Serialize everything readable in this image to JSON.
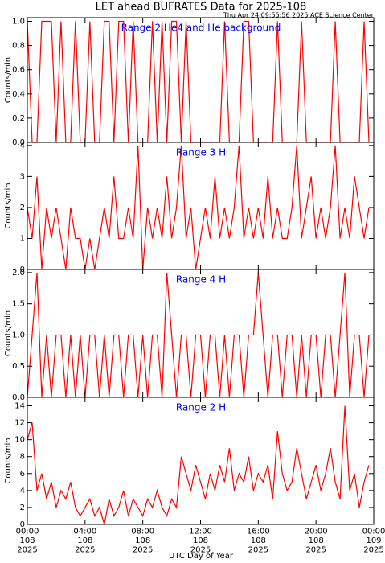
{
  "title": "LET ahead BUFRATES Data for 2025-108",
  "subtitle": "Thu Apr 24 09:55:56 2025 ACE Science Center",
  "chart_data": [
    {
      "type": "line",
      "title": "Range 2 He4 and He background",
      "y_label": "Counts/min",
      "color": "#ff0000",
      "x": [
        0,
        20,
        40,
        60,
        80,
        100,
        120,
        140,
        160,
        180,
        200,
        220,
        240,
        260,
        280,
        300,
        320,
        340,
        360,
        380,
        400,
        420,
        440,
        460,
        480,
        500,
        520,
        540,
        560,
        580,
        600,
        620,
        640,
        660,
        680,
        700,
        720,
        740,
        760,
        780,
        800,
        820,
        840,
        860,
        880,
        900,
        920,
        940,
        960,
        980,
        1000,
        1020,
        1040,
        1060,
        1080,
        1100,
        1120,
        1140,
        1160,
        1180,
        1200,
        1220,
        1240,
        1260,
        1280,
        1300,
        1320,
        1340,
        1360,
        1380,
        1400,
        1420
      ],
      "values": [
        1,
        0,
        0,
        1,
        1,
        1,
        0,
        1,
        0,
        0,
        1,
        0,
        0,
        1,
        0,
        0,
        1,
        1,
        0,
        1,
        1,
        0,
        1,
        0,
        0,
        0,
        1,
        0,
        1,
        0,
        1,
        1,
        0,
        1,
        0,
        0,
        0,
        0,
        0,
        0,
        0,
        1,
        0,
        0,
        0,
        1,
        1,
        0,
        0,
        0,
        0,
        0,
        1,
        0,
        0,
        0,
        0,
        1,
        0,
        0,
        0,
        0,
        0,
        0,
        1,
        0,
        0,
        0,
        0,
        0,
        1,
        0
      ],
      "ylim": [
        0,
        1.03
      ],
      "yticks": [
        {
          "value": 0,
          "label": "0.0"
        },
        {
          "value": 0.2,
          "label": "0.2"
        },
        {
          "value": 0.4,
          "label": "0.4"
        },
        {
          "value": 0.6,
          "label": "0.6"
        },
        {
          "value": 0.8,
          "label": "0.8"
        },
        {
          "value": 1,
          "label": "1.0"
        }
      ]
    },
    {
      "type": "line",
      "title": "Range 3 H",
      "y_label": "Counts/min",
      "color": "#ff0000",
      "x": [
        0,
        20,
        40,
        60,
        80,
        100,
        120,
        140,
        160,
        180,
        200,
        220,
        240,
        260,
        280,
        300,
        320,
        340,
        360,
        380,
        400,
        420,
        440,
        460,
        480,
        500,
        520,
        540,
        560,
        580,
        600,
        620,
        640,
        660,
        680,
        700,
        720,
        740,
        760,
        780,
        800,
        820,
        840,
        860,
        880,
        900,
        920,
        940,
        960,
        980,
        1000,
        1020,
        1040,
        1060,
        1080,
        1100,
        1120,
        1140,
        1160,
        1180,
        1200,
        1220,
        1240,
        1260,
        1280,
        1300,
        1320,
        1340,
        1360,
        1380,
        1400,
        1420
      ],
      "values": [
        2,
        1,
        3,
        0,
        2,
        1,
        2,
        1,
        0,
        2,
        1,
        1,
        0,
        1,
        0,
        1,
        2,
        1,
        3,
        1,
        1,
        2,
        1,
        4,
        0,
        2,
        1,
        2,
        1,
        3,
        1,
        2,
        4,
        1,
        2,
        0,
        1,
        2,
        1,
        3,
        1,
        2,
        1,
        2,
        4,
        1,
        2,
        1,
        2,
        1,
        3,
        1,
        2,
        1,
        1,
        2,
        4,
        1,
        2,
        3,
        1,
        2,
        1,
        2,
        4,
        1,
        2,
        1,
        3,
        2,
        1,
        2
      ],
      "ylim": [
        0,
        4.1
      ],
      "yticks": [
        0,
        1,
        2,
        3,
        4
      ]
    },
    {
      "type": "line",
      "title": "Range 4 H",
      "y_label": "Counts/min",
      "color": "#ff0000",
      "x": [
        0,
        20,
        40,
        60,
        80,
        100,
        120,
        140,
        160,
        180,
        200,
        220,
        240,
        260,
        280,
        300,
        320,
        340,
        360,
        380,
        400,
        420,
        440,
        460,
        480,
        500,
        520,
        540,
        560,
        580,
        600,
        620,
        640,
        660,
        680,
        700,
        720,
        740,
        760,
        780,
        800,
        820,
        840,
        860,
        880,
        900,
        920,
        940,
        960,
        980,
        1000,
        1020,
        1040,
        1060,
        1080,
        1100,
        1120,
        1140,
        1160,
        1180,
        1200,
        1220,
        1240,
        1260,
        1280,
        1300,
        1320,
        1340,
        1360,
        1380,
        1400,
        1420
      ],
      "values": [
        0,
        1,
        2,
        0,
        1,
        0,
        1,
        1,
        0,
        1,
        0,
        1,
        0,
        1,
        1,
        0,
        1,
        0,
        1,
        1,
        0,
        1,
        1,
        0,
        1,
        0,
        1,
        1,
        0,
        2,
        1,
        0,
        1,
        1,
        0,
        1,
        1,
        0,
        1,
        1,
        0,
        1,
        0,
        1,
        1,
        0,
        1,
        1,
        2,
        1,
        0,
        1,
        1,
        0,
        1,
        1,
        0,
        1,
        0,
        1,
        1,
        0,
        1,
        1,
        0,
        1,
        2,
        0,
        1,
        1,
        0,
        1
      ],
      "ylim": [
        0,
        2.05
      ],
      "yticks": [
        {
          "value": 0,
          "label": "0.0"
        },
        {
          "value": 0.5,
          "label": "0.5"
        },
        {
          "value": 1,
          "label": "1.0"
        },
        {
          "value": 1.5,
          "label": "1.5"
        },
        {
          "value": 2,
          "label": "2.0"
        }
      ]
    },
    {
      "type": "line",
      "title": "Range 2 H",
      "y_label": "Counts/min",
      "x_label": "UTC Day of Year",
      "color": "#ff0000",
      "x": [
        0,
        20,
        40,
        60,
        80,
        100,
        120,
        140,
        160,
        180,
        200,
        220,
        240,
        260,
        280,
        300,
        320,
        340,
        360,
        380,
        400,
        420,
        440,
        460,
        480,
        500,
        520,
        540,
        560,
        580,
        600,
        620,
        640,
        660,
        680,
        700,
        720,
        740,
        760,
        780,
        800,
        820,
        840,
        860,
        880,
        900,
        920,
        940,
        960,
        980,
        1000,
        1020,
        1040,
        1060,
        1080,
        1100,
        1120,
        1140,
        1160,
        1180,
        1200,
        1220,
        1240,
        1260,
        1280,
        1300,
        1320,
        1340,
        1360,
        1380,
        1400,
        1420
      ],
      "values": [
        10,
        12,
        4,
        6,
        3,
        5,
        2,
        4,
        3,
        5,
        2,
        1,
        2,
        3,
        1,
        2,
        0,
        3,
        1,
        2,
        4,
        1,
        3,
        2,
        1,
        3,
        2,
        4,
        2,
        1,
        3,
        2,
        8,
        6,
        4,
        7,
        5,
        3,
        6,
        4,
        7,
        5,
        9,
        4,
        6,
        5,
        8,
        4,
        6,
        5,
        7,
        3,
        11,
        6,
        4,
        5,
        9,
        6,
        3,
        5,
        7,
        4,
        6,
        9,
        5,
        3,
        14,
        4,
        6,
        2,
        5,
        7
      ],
      "ylim": [
        0,
        15
      ],
      "yticks": [
        0,
        2,
        4,
        6,
        8,
        10,
        12,
        14
      ],
      "xlim": [
        0,
        1440
      ],
      "xticks": [
        {
          "value": 0,
          "label": "00:00\n108\n2025"
        },
        {
          "value": 240,
          "label": "04:00\n108\n2025"
        },
        {
          "value": 480,
          "label": "08:00\n108\n2025"
        },
        {
          "value": 720,
          "label": "12:00\n108\n2025"
        },
        {
          "value": 960,
          "label": "16:00\n108\n2025"
        },
        {
          "value": 1200,
          "label": "20:00\n108\n2025"
        },
        {
          "value": 1440,
          "label": "00:00\n109\n2025"
        }
      ]
    }
  ]
}
